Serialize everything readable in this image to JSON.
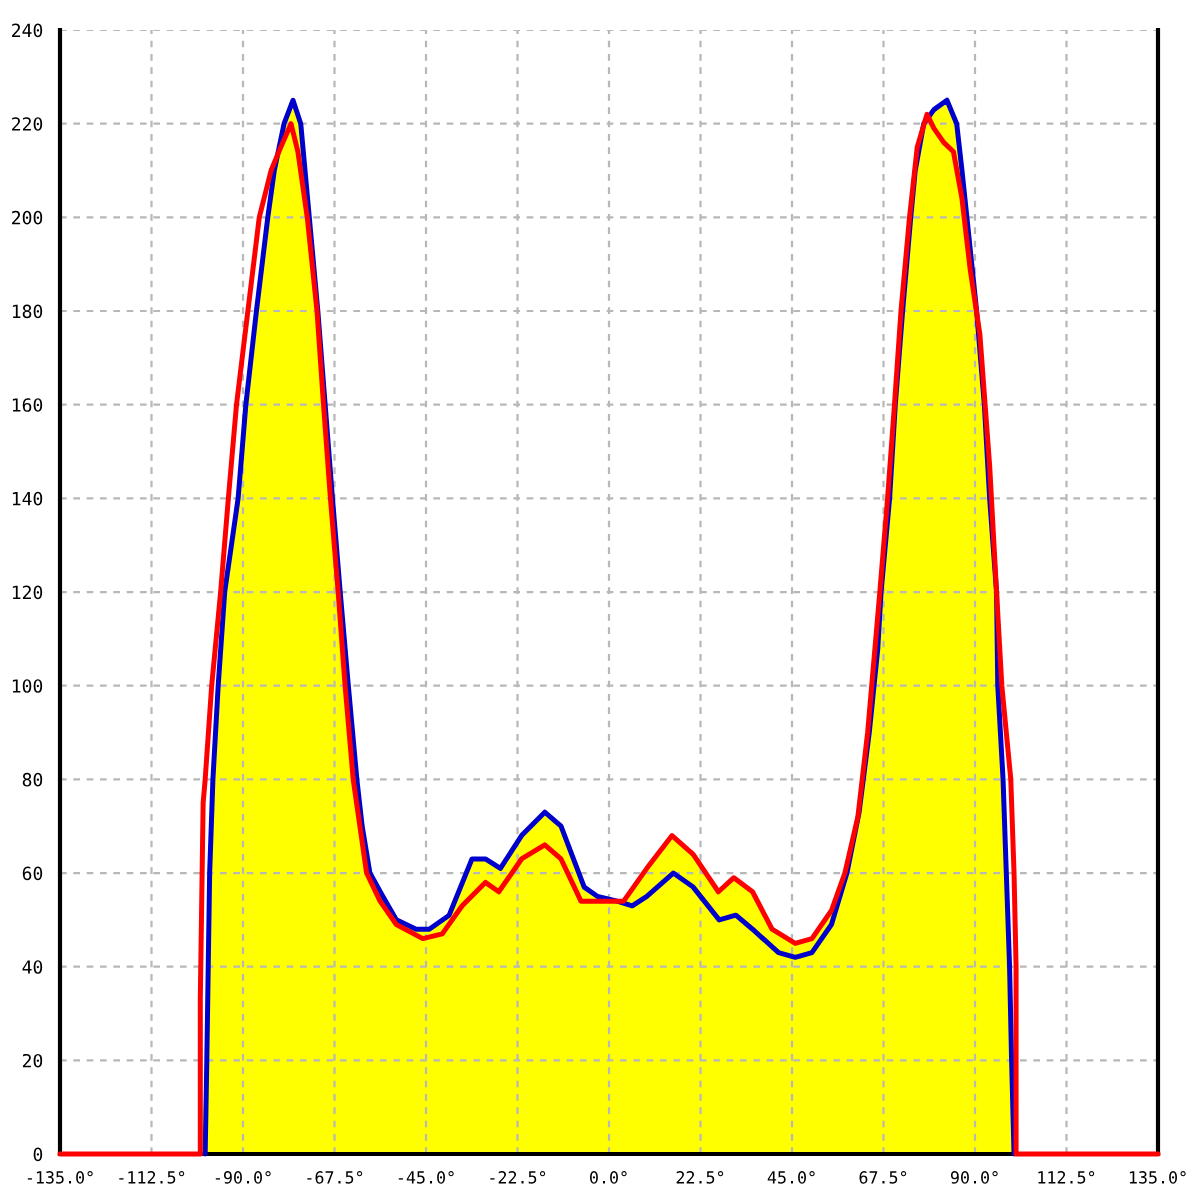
{
  "chart_data": {
    "type": "line",
    "xlim": [
      -135,
      135
    ],
    "xticks": [
      {
        "value": -135,
        "label": "-135.0°"
      },
      {
        "value": -112.5,
        "label": "-112.5°"
      },
      {
        "value": -90,
        "label": "-90.0°"
      },
      {
        "value": -67.5,
        "label": "-67.5°"
      },
      {
        "value": -45,
        "label": "-45.0°"
      },
      {
        "value": -22.5,
        "label": "-22.5°"
      },
      {
        "value": 0,
        "label": "0.0°"
      },
      {
        "value": 22.5,
        "label": "22.5°"
      },
      {
        "value": 45,
        "label": "45.0°"
      },
      {
        "value": 67.5,
        "label": "67.5°"
      },
      {
        "value": 90,
        "label": "90.0°"
      },
      {
        "value": 112.5,
        "label": "112.5°"
      },
      {
        "value": 135,
        "label": "135.0°"
      }
    ],
    "ylim": [
      0,
      240
    ],
    "yticks": [
      0,
      20,
      40,
      60,
      80,
      100,
      120,
      140,
      160,
      180,
      200,
      220,
      240
    ],
    "grid": true,
    "series": [
      {
        "type": "area",
        "color": "#ffff00",
        "x": [
          -100.5,
          -98.9,
          -98.2,
          -97.4,
          -96.1,
          -94.5,
          -91.2,
          -89.3,
          -86.7,
          -83.9,
          -82.3,
          -79.9,
          -77.7,
          -75.8,
          -73.7,
          -71.6,
          -69.8,
          -68.0,
          -66.1,
          -64.1,
          -62.0,
          -60.7,
          -58.8,
          -55.6,
          -52.3,
          -47.4,
          -44.2,
          -39.3,
          -33.7,
          -30.4,
          -26.7,
          -21.5,
          -15.8,
          -11.8,
          -6.1,
          -2.8,
          0.5,
          3.6,
          9.3,
          15.5,
          20.7,
          26.9,
          30.7,
          35.3,
          40.1,
          45.8,
          49.9,
          54.7,
          58.5,
          61.5,
          64.0,
          66.1,
          66.9,
          69.0,
          70.4,
          72.2,
          74.2,
          75.3,
          77.4,
          79.9,
          83.1,
          85.5,
          86.8,
          88.0,
          90.4,
          92.3,
          93.6,
          95.3,
          95.6,
          96.9,
          97.7,
          98.5,
          99.0,
          99.6
        ],
        "values": [
          0,
          20,
          60,
          80,
          100,
          120,
          140,
          160,
          180,
          200,
          210,
          220,
          225,
          220,
          200,
          180,
          160,
          140,
          120,
          100,
          80,
          70,
          60,
          55,
          50,
          48,
          48,
          51,
          63,
          63,
          61,
          68,
          73,
          70,
          57,
          55,
          54,
          54,
          61,
          68,
          64,
          56,
          59,
          56,
          48,
          45,
          46,
          52,
          60,
          73,
          90,
          108,
          120,
          140,
          160,
          180,
          200,
          210,
          220,
          223,
          225,
          220,
          210,
          200,
          180,
          160,
          140,
          120,
          100,
          80,
          60,
          40,
          20,
          0
        ]
      },
      {
        "color": "#0000cc",
        "x": [
          -99.3,
          -98.9,
          -98.2,
          -97.4,
          -96.1,
          -94.5,
          -91.2,
          -89.3,
          -86.7,
          -83.9,
          -82.3,
          -79.9,
          -77.7,
          -75.8,
          -73.7,
          -71.6,
          -69.8,
          -68.0,
          -66.1,
          -64.1,
          -62.0,
          -60.7,
          -58.8,
          -55.6,
          -52.3,
          -47.4,
          -44.2,
          -39.3,
          -33.7,
          -30.4,
          -26.7,
          -21.5,
          -15.8,
          -11.8,
          -6.1,
          -2.8,
          2.0,
          5.7,
          9.3,
          15.8,
          20.7,
          27.1,
          31.2,
          35.3,
          41.7,
          45.8,
          49.9,
          54.7,
          58.5,
          61.5,
          64.0,
          66.1,
          66.9,
          69.0,
          70.4,
          72.2,
          74.2,
          75.3,
          77.4,
          79.9,
          83.1,
          85.5,
          86.8,
          88.0,
          90.4,
          92.3,
          93.6,
          95.3,
          95.6,
          96.9,
          97.7,
          98.5,
          99.0,
          99.6
        ],
        "values": [
          0,
          20,
          60,
          80,
          100,
          120,
          140,
          160,
          180,
          200,
          210,
          220,
          225,
          220,
          200,
          180,
          160,
          140,
          120,
          100,
          80,
          70,
          60,
          55,
          50,
          48,
          48,
          51,
          63,
          63,
          61,
          68,
          73,
          70,
          57,
          55,
          54,
          53,
          55,
          60,
          57,
          50,
          51,
          48,
          43,
          42,
          43,
          49,
          60,
          73,
          90,
          108,
          120,
          140,
          160,
          180,
          200,
          210,
          220,
          223,
          225,
          220,
          210,
          200,
          180,
          160,
          140,
          120,
          100,
          80,
          60,
          40,
          20,
          0
        ]
      },
      {
        "color": "#ff0000",
        "x": [
          -135,
          -100.5,
          -100.5,
          -99.8,
          -99.3,
          -97.7,
          -95.5,
          -93.6,
          -91.6,
          -88.8,
          -86.0,
          -83.1,
          -80.7,
          -78.2,
          -76.5,
          -74.2,
          -71.8,
          -70.2,
          -68.5,
          -66.6,
          -64.9,
          -62.9,
          -59.6,
          -56.3,
          -52.3,
          -45.8,
          -41.0,
          -36.1,
          -30.4,
          -27.1,
          -21.5,
          -15.8,
          -11.8,
          -6.9,
          -0.4,
          3.6,
          9.3,
          15.5,
          20.7,
          26.9,
          30.7,
          35.3,
          40.1,
          45.8,
          49.9,
          54.7,
          58.0,
          61.2,
          63.6,
          66.6,
          68.5,
          70.2,
          71.8,
          73.9,
          75.8,
          78.2,
          79.9,
          82.3,
          84.7,
          86.8,
          88.8,
          91.2,
          93.6,
          95.3,
          96.6,
          98.8,
          99.6,
          100.1,
          100.1,
          135
        ],
        "values": [
          0,
          0,
          33,
          75,
          80,
          100,
          120,
          140,
          160,
          180,
          200,
          210,
          215,
          220,
          214,
          200,
          180,
          160,
          140,
          120,
          100,
          80,
          60,
          54,
          49,
          46,
          47,
          53,
          58,
          56,
          63,
          66,
          63,
          54,
          54,
          54,
          61,
          68,
          64,
          56,
          59,
          56,
          48,
          45,
          46,
          52,
          60,
          72,
          90,
          120,
          140,
          160,
          180,
          200,
          215,
          222,
          219,
          216,
          214,
          204,
          189,
          175,
          147,
          120,
          100,
          80,
          60,
          40,
          0,
          0
        ]
      }
    ]
  }
}
